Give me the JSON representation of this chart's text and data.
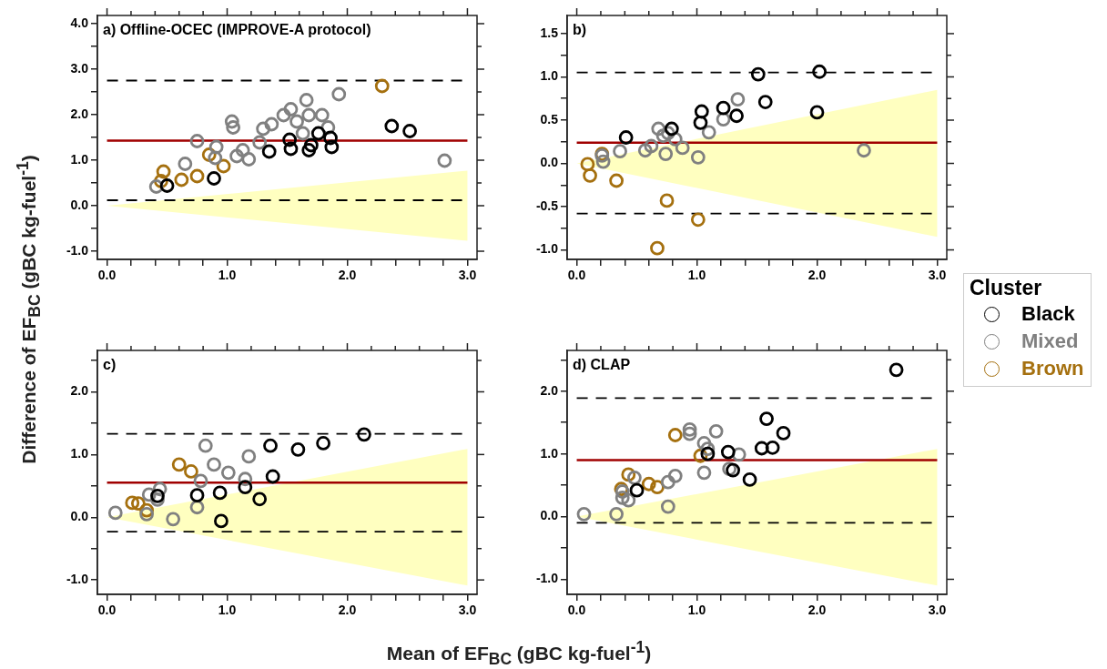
{
  "chart_data": [
    {
      "type": "scatter",
      "title": "a) Offline-OCEC (IMPROVE-A protocol)",
      "ylabel": "Difference of EF$_{BC}$ (gBC kg-fuel$^{-1}$)",
      "xlim": [
        -0.08,
        3.08
      ],
      "ylim": [
        -1.18,
        4.18
      ],
      "xticks": [
        {
          "value": 0,
          "label": "0.0"
        },
        {
          "value": 0.2,
          "label": null
        },
        {
          "value": 0.4,
          "label": null
        },
        {
          "value": 0.6,
          "label": null
        },
        {
          "value": 0.8,
          "label": null
        },
        {
          "value": 1,
          "label": "1.0"
        },
        {
          "value": 1.2,
          "label": null
        },
        {
          "value": 1.4,
          "label": null
        },
        {
          "value": 1.6,
          "label": null
        },
        {
          "value": 1.8,
          "label": null
        },
        {
          "value": 2,
          "label": "2.0"
        },
        {
          "value": 2.2,
          "label": null
        },
        {
          "value": 2.4,
          "label": null
        },
        {
          "value": 2.6,
          "label": null
        },
        {
          "value": 2.8,
          "label": null
        },
        {
          "value": 3,
          "label": "3.0"
        }
      ],
      "yticks": [
        {
          "value": -1,
          "label": "-1.0"
        },
        {
          "value": -0.5,
          "label": null
        },
        {
          "value": 0,
          "label": "0.0"
        },
        {
          "value": 0.5,
          "label": null
        },
        {
          "value": 1,
          "label": "1.0"
        },
        {
          "value": 1.5,
          "label": null
        },
        {
          "value": 2,
          "label": "2.0"
        },
        {
          "value": 2.5,
          "label": null
        },
        {
          "value": 3,
          "label": "3.0"
        },
        {
          "value": 3.5,
          "label": null
        },
        {
          "value": 4,
          "label": "4.0"
        }
      ],
      "series": [
        {
          "type": "area",
          "color": "#ffffc0",
          "x": [
            0,
            3,
            3
          ],
          "values": [
            0,
            0.77,
            -0.77
          ]
        },
        {
          "color": "#000000",
          "marker": "circle",
          "x": [
            0.5,
            0.89,
            1.35,
            1.52,
            1.53,
            1.68,
            1.7,
            1.76,
            1.86,
            1.87,
            2.37,
            2.52
          ],
          "values": [
            0.44,
            0.6,
            1.19,
            1.45,
            1.25,
            1.22,
            1.33,
            1.59,
            1.49,
            1.29,
            1.75,
            1.64
          ]
        },
        {
          "color": "#808080",
          "marker": "circle",
          "x": [
            0.41,
            0.65,
            0.75,
            0.91,
            0.9,
            1.04,
            1.05,
            1.08,
            1.13,
            1.18,
            1.27,
            1.3,
            1.37,
            1.47,
            1.53,
            1.58,
            1.66,
            1.68,
            1.79,
            1.84,
            1.63,
            1.93,
            2.81
          ],
          "values": [
            0.42,
            0.92,
            1.42,
            1.29,
            1.05,
            1.85,
            1.72,
            1.09,
            1.22,
            1.02,
            1.39,
            1.69,
            1.79,
            1.99,
            2.12,
            1.85,
            2.32,
            1.99,
            1.99,
            1.72,
            1.59,
            2.45,
            0.99
          ]
        },
        {
          "color": "#a5700f",
          "marker": "circle",
          "x": [
            2.29,
            0.47,
            0.45,
            0.62,
            0.75,
            0.85,
            0.97
          ],
          "values": [
            2.63,
            0.75,
            0.54,
            0.57,
            0.65,
            1.12,
            0.87
          ]
        }
      ],
      "ref_lines": [
        {
          "axis": "y",
          "value": 1.43,
          "color": "#a00000",
          "line_style": "solid"
        },
        {
          "axis": "y",
          "value": 2.75,
          "color": "#000000",
          "line_style": "dashed"
        },
        {
          "axis": "y",
          "value": 0.12,
          "color": "#000000",
          "line_style": "dashed"
        }
      ]
    },
    {
      "type": "scatter",
      "title": "b)",
      "legend": "right",
      "legend_title": "Cluster",
      "xlim": [
        -0.08,
        3.08
      ],
      "ylim": [
        -1.11,
        1.71
      ],
      "xticks": [
        {
          "value": 0,
          "label": "0.0"
        },
        {
          "value": 0.2,
          "label": null
        },
        {
          "value": 0.4,
          "label": null
        },
        {
          "value": 0.6,
          "label": null
        },
        {
          "value": 0.8,
          "label": null
        },
        {
          "value": 1,
          "label": "1.0"
        },
        {
          "value": 1.2,
          "label": null
        },
        {
          "value": 1.4,
          "label": null
        },
        {
          "value": 1.6,
          "label": null
        },
        {
          "value": 1.8,
          "label": null
        },
        {
          "value": 2,
          "label": "2.0"
        },
        {
          "value": 2.2,
          "label": null
        },
        {
          "value": 2.4,
          "label": null
        },
        {
          "value": 2.6,
          "label": null
        },
        {
          "value": 2.8,
          "label": null
        },
        {
          "value": 3,
          "label": "3.0"
        }
      ],
      "yticks": [
        {
          "value": -1,
          "label": "-1.0"
        },
        {
          "value": -0.75,
          "label": null
        },
        {
          "value": -0.5,
          "label": "-0.5"
        },
        {
          "value": -0.25,
          "label": null
        },
        {
          "value": 0,
          "label": "0.0"
        },
        {
          "value": 0.25,
          "label": null
        },
        {
          "value": 0.5,
          "label": "0.5"
        },
        {
          "value": 0.75,
          "label": null
        },
        {
          "value": 1,
          "label": "1.0"
        },
        {
          "value": 1.25,
          "label": null
        },
        {
          "value": 1.5,
          "label": "1.5"
        }
      ],
      "series": [
        {
          "type": "area",
          "color": "#ffffc0",
          "x": [
            0,
            3,
            3
          ],
          "values": [
            0,
            0.85,
            -0.85
          ]
        },
        {
          "name": "Black",
          "color": "#000000",
          "marker": "circle",
          "x": [
            0.41,
            0.79,
            1.04,
            1.03,
            1.22,
            1.33,
            1.51,
            1.57,
            2.02,
            2.0
          ],
          "values": [
            0.3,
            0.4,
            0.6,
            0.47,
            0.64,
            0.55,
            1.03,
            0.71,
            1.06,
            0.59
          ]
        },
        {
          "name": "Mixed",
          "color": "#808080",
          "marker": "circle",
          "x": [
            0.22,
            0.21,
            0.36,
            0.57,
            0.62,
            0.68,
            0.72,
            0.74,
            0.76,
            0.82,
            0.88,
            1.01,
            1.1,
            1.22,
            1.34,
            2.39
          ],
          "values": [
            0.02,
            0.09,
            0.14,
            0.15,
            0.2,
            0.4,
            0.32,
            0.11,
            0.35,
            0.28,
            0.18,
            0.07,
            0.36,
            0.51,
            0.74,
            0.15
          ]
        },
        {
          "name": "Brown",
          "color": "#a5700f",
          "marker": "circle",
          "x": [
            0.09,
            0.11,
            0.21,
            0.33,
            0.75,
            1.01,
            0.67
          ],
          "values": [
            -0.01,
            -0.14,
            0.11,
            -0.2,
            -0.43,
            -0.65,
            -0.98
          ]
        }
      ],
      "ref_lines": [
        {
          "axis": "y",
          "value": 0.24,
          "color": "#a00000",
          "line_style": "solid"
        },
        {
          "axis": "y",
          "value": 1.05,
          "color": "#000000",
          "line_style": "dashed"
        },
        {
          "axis": "y",
          "value": -0.58,
          "color": "#000000",
          "line_style": "dashed"
        }
      ]
    },
    {
      "type": "scatter",
      "title": "c)",
      "xlabel": "Mean of EF$_{BC}$ (gBC kg-fuel$^{-1}$)",
      "xlim": [
        -0.08,
        3.08
      ],
      "ylim": [
        -1.23,
        2.66
      ],
      "xticks": [
        {
          "value": 0,
          "label": "0.0"
        },
        {
          "value": 0.2,
          "label": null
        },
        {
          "value": 0.4,
          "label": null
        },
        {
          "value": 0.6,
          "label": null
        },
        {
          "value": 0.8,
          "label": null
        },
        {
          "value": 1,
          "label": "1.0"
        },
        {
          "value": 1.2,
          "label": null
        },
        {
          "value": 1.4,
          "label": null
        },
        {
          "value": 1.6,
          "label": null
        },
        {
          "value": 1.8,
          "label": null
        },
        {
          "value": 2,
          "label": "2.0"
        },
        {
          "value": 2.2,
          "label": null
        },
        {
          "value": 2.4,
          "label": null
        },
        {
          "value": 2.6,
          "label": null
        },
        {
          "value": 2.8,
          "label": null
        },
        {
          "value": 3,
          "label": "3.0"
        }
      ],
      "yticks": [
        {
          "value": -1,
          "label": "-1.0"
        },
        {
          "value": -0.5,
          "label": null
        },
        {
          "value": 0,
          "label": "0.0"
        },
        {
          "value": 0.5,
          "label": null
        },
        {
          "value": 1,
          "label": "1.0"
        },
        {
          "value": 1.5,
          "label": null
        },
        {
          "value": 2,
          "label": "2.0"
        },
        {
          "value": 2.5,
          "label": null
        }
      ],
      "series": [
        {
          "type": "area",
          "color": "#ffffc0",
          "x": [
            0,
            3,
            3
          ],
          "values": [
            0,
            1.09,
            -1.09
          ]
        },
        {
          "color": "#000000",
          "marker": "circle",
          "x": [
            2.14,
            1.8,
            1.59,
            1.36,
            1.38,
            1.15,
            1.27,
            0.94,
            0.75,
            0.95,
            0.42
          ],
          "values": [
            1.32,
            1.18,
            1.08,
            1.14,
            0.65,
            0.48,
            0.29,
            0.39,
            0.35,
            -0.06,
            0.34
          ]
        },
        {
          "color": "#808080",
          "marker": "circle",
          "x": [
            0.07,
            0.33,
            0.35,
            0.44,
            0.42,
            0.55,
            0.75,
            0.78,
            0.82,
            0.89,
            1.01,
            1.15,
            1.18
          ],
          "values": [
            0.07,
            0.05,
            0.36,
            0.45,
            0.28,
            -0.03,
            0.16,
            0.58,
            1.14,
            0.84,
            0.71,
            0.61,
            0.97
          ]
        },
        {
          "color": "#a5700f",
          "marker": "circle",
          "x": [
            0.21,
            0.26,
            0.33,
            0.6,
            0.7
          ],
          "values": [
            0.23,
            0.22,
            0.11,
            0.84,
            0.73
          ]
        }
      ],
      "ref_lines": [
        {
          "axis": "y",
          "value": 0.55,
          "color": "#a00000",
          "line_style": "solid"
        },
        {
          "axis": "y",
          "value": 1.33,
          "color": "#000000",
          "line_style": "dashed"
        },
        {
          "axis": "y",
          "value": -0.23,
          "color": "#000000",
          "line_style": "dashed"
        }
      ]
    },
    {
      "type": "scatter",
      "title": "d) CLAP",
      "xlim": [
        -0.08,
        3.08
      ],
      "ylim": [
        -1.24,
        2.65
      ],
      "xticks": [
        {
          "value": 0,
          "label": "0.0"
        },
        {
          "value": 0.2,
          "label": null
        },
        {
          "value": 0.4,
          "label": null
        },
        {
          "value": 0.6,
          "label": null
        },
        {
          "value": 0.8,
          "label": null
        },
        {
          "value": 1,
          "label": "1.0"
        },
        {
          "value": 1.2,
          "label": null
        },
        {
          "value": 1.4,
          "label": null
        },
        {
          "value": 1.6,
          "label": null
        },
        {
          "value": 1.8,
          "label": null
        },
        {
          "value": 2,
          "label": "2.0"
        },
        {
          "value": 2.2,
          "label": null
        },
        {
          "value": 2.4,
          "label": null
        },
        {
          "value": 2.6,
          "label": null
        },
        {
          "value": 2.8,
          "label": null
        },
        {
          "value": 3,
          "label": "3.0"
        }
      ],
      "yticks": [
        {
          "value": -1,
          "label": "-1.0"
        },
        {
          "value": -0.5,
          "label": null
        },
        {
          "value": 0,
          "label": "0.0"
        },
        {
          "value": 0.5,
          "label": null
        },
        {
          "value": 1,
          "label": "1.0"
        },
        {
          "value": 1.5,
          "label": null
        },
        {
          "value": 2,
          "label": "2.0"
        },
        {
          "value": 2.5,
          "label": null
        }
      ],
      "series": [
        {
          "type": "area",
          "color": "#ffffc0",
          "x": [
            0,
            3,
            3
          ],
          "values": [
            0,
            1.08,
            -1.1
          ]
        },
        {
          "color": "#000000",
          "marker": "circle",
          "x": [
            2.66,
            1.58,
            1.72,
            1.63,
            1.54,
            1.44,
            1.26,
            1.3,
            1.09,
            0.5
          ],
          "values": [
            2.34,
            1.56,
            1.33,
            1.1,
            1.09,
            0.59,
            1.03,
            0.74,
            1.0,
            0.42
          ]
        },
        {
          "color": "#808080",
          "marker": "circle",
          "x": [
            0.06,
            0.33,
            0.38,
            0.43,
            0.38,
            0.48,
            0.76,
            0.82,
            0.76,
            0.94,
            0.94,
            1.06,
            1.09,
            1.16,
            1.06,
            1.27,
            1.35
          ],
          "values": [
            0.04,
            0.04,
            0.3,
            0.26,
            0.4,
            0.62,
            0.55,
            0.65,
            0.16,
            1.39,
            1.32,
            1.17,
            1.08,
            1.36,
            0.7,
            0.76,
            0.99
          ]
        },
        {
          "color": "#a5700f",
          "marker": "circle",
          "x": [
            0.82,
            0.43,
            0.37,
            0.6,
            0.67,
            1.03
          ],
          "values": [
            1.3,
            0.67,
            0.44,
            0.52,
            0.47,
            0.97
          ]
        }
      ],
      "ref_lines": [
        {
          "axis": "y",
          "value": 0.9,
          "color": "#a00000",
          "line_style": "solid"
        },
        {
          "axis": "y",
          "value": 1.89,
          "color": "#000000",
          "line_style": "dashed"
        },
        {
          "axis": "y",
          "value": -0.1,
          "color": "#000000",
          "line_style": "dashed"
        }
      ]
    }
  ]
}
